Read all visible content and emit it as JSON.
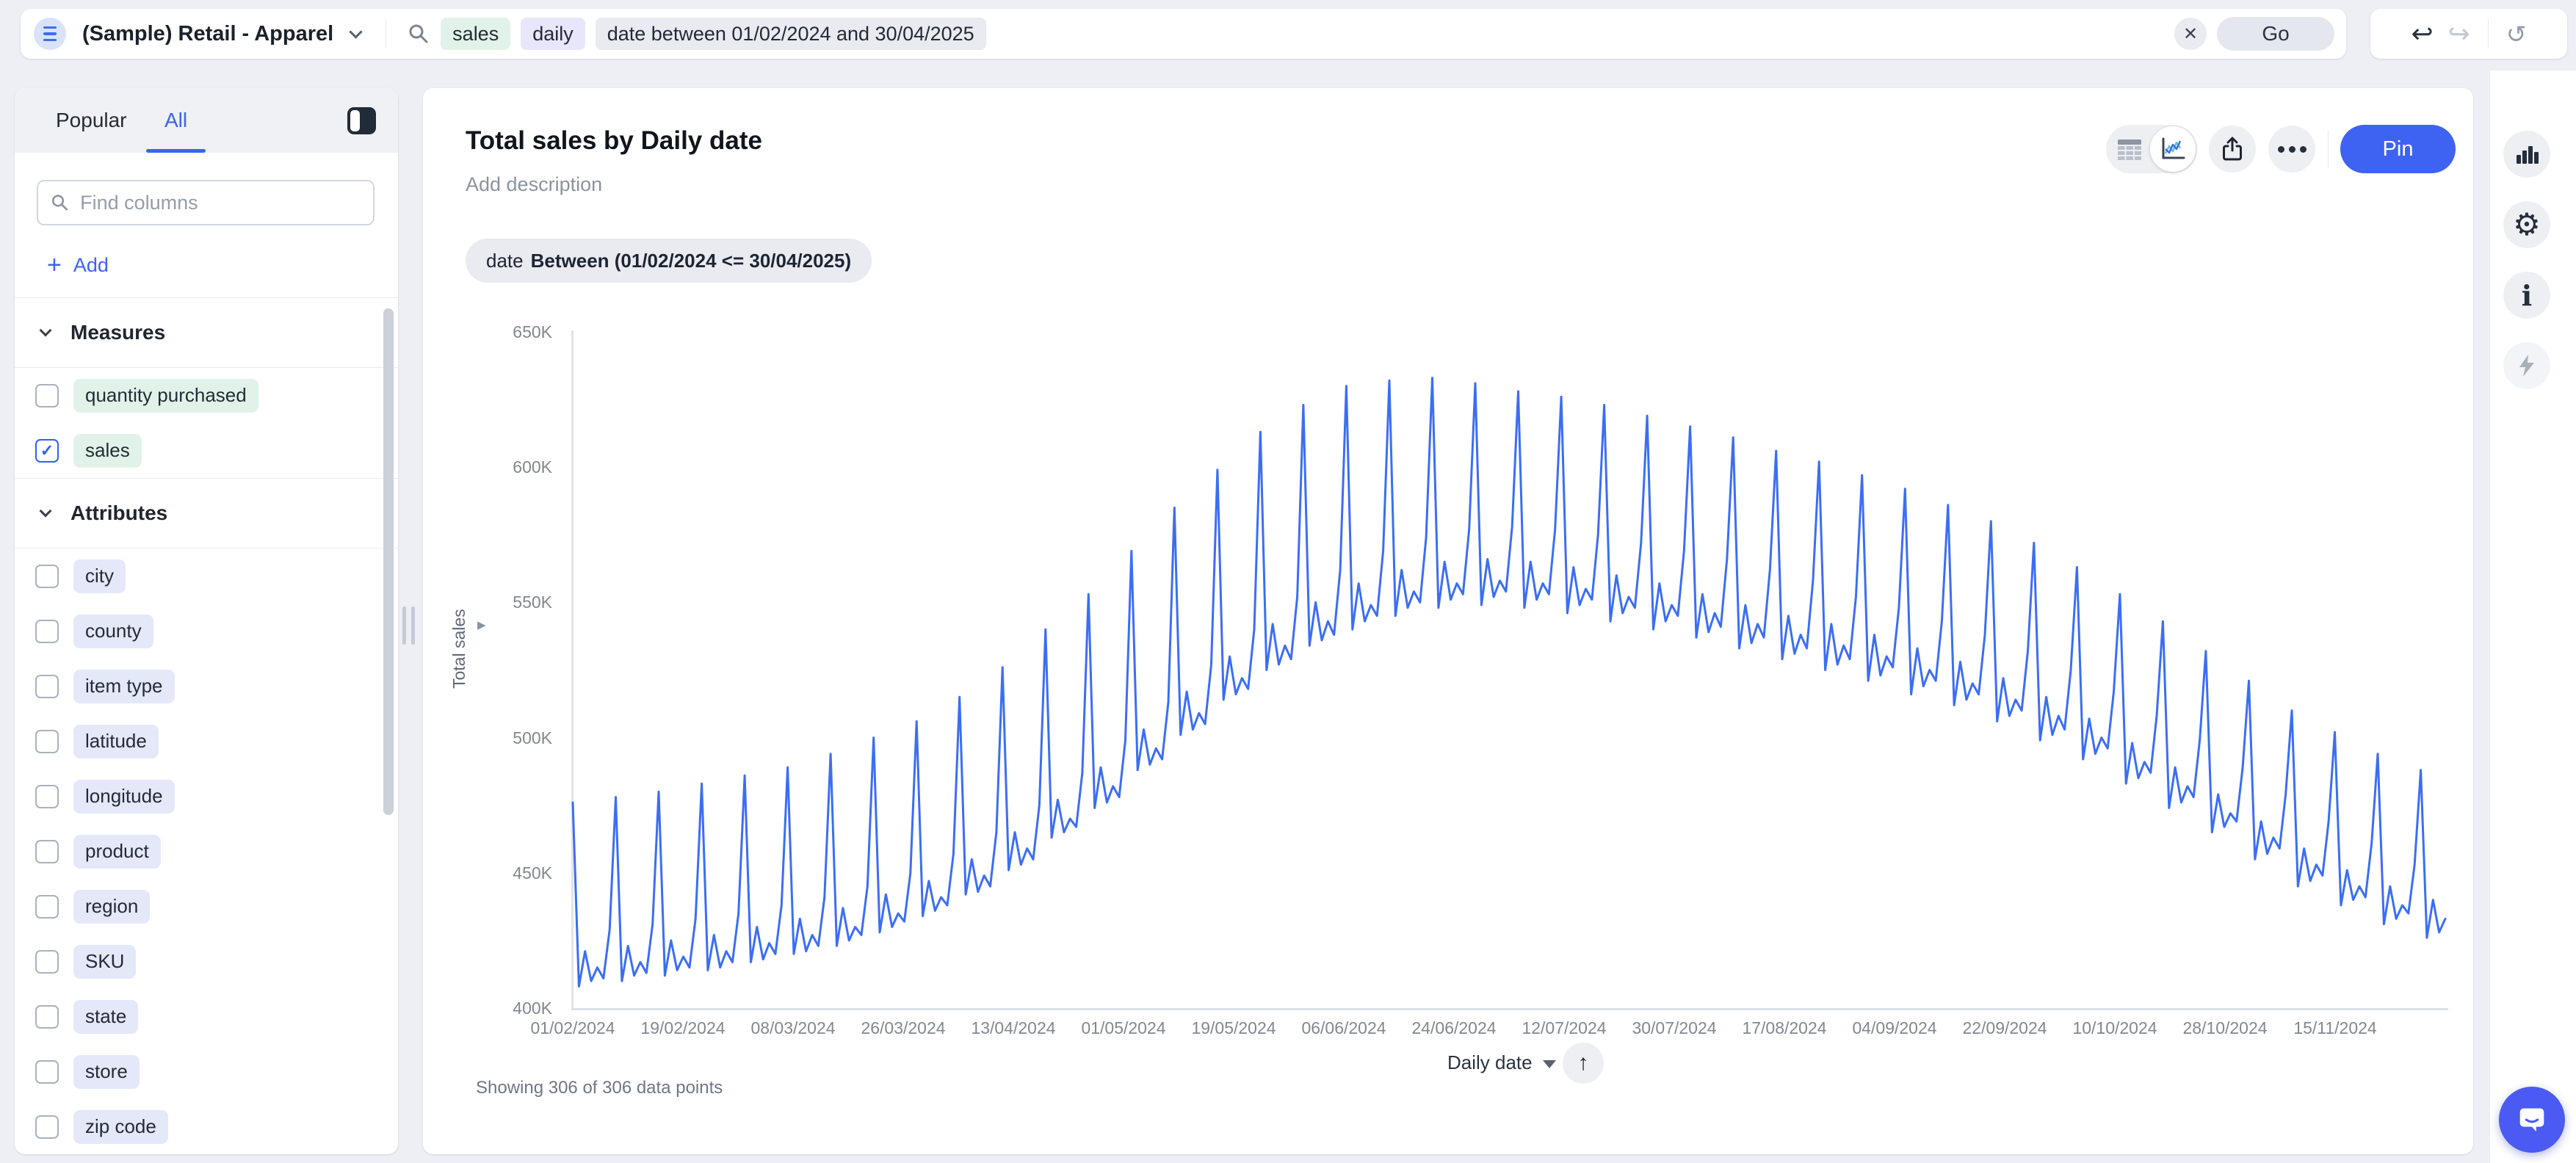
{
  "colors": {
    "page_bg": "#edeff4",
    "accent_blue": "#3c63f2",
    "pin_bg": "#3e63f2",
    "line": "#3b6ef5",
    "token_measure_bg": "#e1f3e8",
    "token_keyword_bg": "#e7e6fa",
    "token_filter_bg": "#e9ebf0",
    "chip_attribute_bg": "#e4e8f9",
    "chat_bubble_bg": "#4b5af2"
  },
  "icons": {
    "check": "✓",
    "close": "✕",
    "undo": "↩",
    "redo": "↪",
    "reset": "↺",
    "up_arrow": "↑",
    "gear": "⚙",
    "info": "i"
  },
  "topbar": {
    "datasource": "(Sample) Retail - Apparel",
    "tokens": [
      {
        "text": "sales",
        "kind": "measure"
      },
      {
        "text": "daily",
        "kind": "keyword"
      },
      {
        "text": "date between 01/02/2024 and 30/04/2025",
        "kind": "filter"
      }
    ],
    "go_label": "Go"
  },
  "sidebar": {
    "tabs": {
      "popular": "Popular",
      "all": "All",
      "active": "All"
    },
    "search_placeholder": "Find columns",
    "add_label": "Add",
    "sections": [
      {
        "title": "Measures",
        "kind": "measure",
        "items": [
          {
            "label": "quantity purchased",
            "checked": false
          },
          {
            "label": "sales",
            "checked": true
          }
        ]
      },
      {
        "title": "Attributes",
        "kind": "attribute",
        "items": [
          {
            "label": "city",
            "checked": false
          },
          {
            "label": "county",
            "checked": false
          },
          {
            "label": "item type",
            "checked": false
          },
          {
            "label": "latitude",
            "checked": false
          },
          {
            "label": "longitude",
            "checked": false
          },
          {
            "label": "product",
            "checked": false
          },
          {
            "label": "region",
            "checked": false
          },
          {
            "label": "SKU",
            "checked": false
          },
          {
            "label": "state",
            "checked": false
          },
          {
            "label": "store",
            "checked": false
          },
          {
            "label": "zip code",
            "checked": false
          }
        ]
      }
    ]
  },
  "main": {
    "title": "Total sales by Daily date",
    "description_placeholder": "Add description",
    "filter_chip": {
      "prefix": "date",
      "bold": "Between (01/02/2024 <= 30/04/2025)"
    },
    "pin_label": "Pin",
    "showing_text": "Showing 306 of 306 data points",
    "x_axis_control": "Daily date"
  },
  "chart_data": {
    "type": "line",
    "title": "Total sales by Daily date",
    "xlabel": "Daily date",
    "ylabel": "Total sales",
    "legend": false,
    "grid": false,
    "line_color": "#3b6ef5",
    "x_start_date": "01/02/2024",
    "x_frequency": "daily",
    "n_points": 306,
    "values_unit": "thousands",
    "ylim_thousands": [
      400,
      650
    ],
    "y_ticks": [
      "650K",
      "600K",
      "550K",
      "500K",
      "450K",
      "400K"
    ],
    "x_ticks": [
      "01/02/2024",
      "19/02/2024",
      "08/03/2024",
      "26/03/2024",
      "13/04/2024",
      "01/05/2024",
      "19/05/2024",
      "06/06/2024",
      "24/06/2024",
      "12/07/2024",
      "30/07/2024",
      "17/08/2024",
      "04/09/2024",
      "22/09/2024",
      "10/10/2024",
      "28/10/2024",
      "15/11/2024"
    ],
    "values": [
      476,
      408,
      421,
      410,
      415,
      411,
      429,
      478,
      410,
      423,
      412,
      417,
      413,
      431,
      480,
      412,
      425,
      414,
      419,
      415,
      433,
      483,
      414,
      427,
      415,
      421,
      417,
      435,
      486,
      417,
      430,
      418,
      424,
      420,
      438,
      489,
      420,
      433,
      421,
      427,
      423,
      441,
      494,
      423,
      437,
      425,
      430,
      427,
      445,
      500,
      428,
      442,
      430,
      435,
      432,
      450,
      506,
      434,
      447,
      436,
      441,
      438,
      457,
      515,
      442,
      455,
      443,
      449,
      445,
      465,
      526,
      451,
      465,
      453,
      459,
      455,
      475,
      540,
      463,
      477,
      465,
      470,
      467,
      487,
      553,
      474,
      489,
      476,
      482,
      478,
      499,
      569,
      488,
      503,
      490,
      496,
      492,
      513,
      585,
      501,
      517,
      503,
      509,
      505,
      527,
      599,
      514,
      530,
      516,
      522,
      518,
      540,
      613,
      525,
      542,
      527,
      534,
      529,
      552,
      623,
      534,
      550,
      536,
      543,
      538,
      562,
      630,
      540,
      557,
      543,
      549,
      545,
      569,
      632,
      545,
      562,
      548,
      554,
      550,
      574,
      633,
      548,
      565,
      551,
      557,
      553,
      577,
      631,
      549,
      566,
      552,
      558,
      554,
      578,
      628,
      548,
      565,
      551,
      557,
      553,
      577,
      626,
      546,
      563,
      549,
      555,
      551,
      575,
      623,
      543,
      560,
      546,
      552,
      548,
      572,
      619,
      540,
      557,
      543,
      549,
      545,
      569,
      615,
      537,
      553,
      539,
      546,
      541,
      566,
      611,
      533,
      549,
      535,
      542,
      537,
      562,
      606,
      529,
      545,
      531,
      538,
      533,
      558,
      602,
      525,
      542,
      527,
      534,
      529,
      552,
      597,
      521,
      538,
      523,
      530,
      526,
      548,
      592,
      516,
      533,
      519,
      525,
      521,
      543,
      586,
      512,
      528,
      514,
      520,
      516,
      538,
      580,
      506,
      522,
      508,
      514,
      510,
      532,
      572,
      499,
      515,
      501,
      508,
      503,
      525,
      563,
      492,
      507,
      494,
      500,
      496,
      517,
      553,
      483,
      498,
      485,
      491,
      487,
      508,
      543,
      474,
      489,
      476,
      482,
      478,
      499,
      532,
      465,
      479,
      467,
      472,
      469,
      489,
      521,
      455,
      469,
      457,
      463,
      459,
      479,
      510,
      445,
      459,
      447,
      453,
      449,
      469,
      502,
      438,
      451,
      440,
      445,
      441,
      461,
      494,
      431,
      445,
      433,
      438,
      435,
      453,
      488,
      426,
      440,
      428,
      433
    ]
  }
}
